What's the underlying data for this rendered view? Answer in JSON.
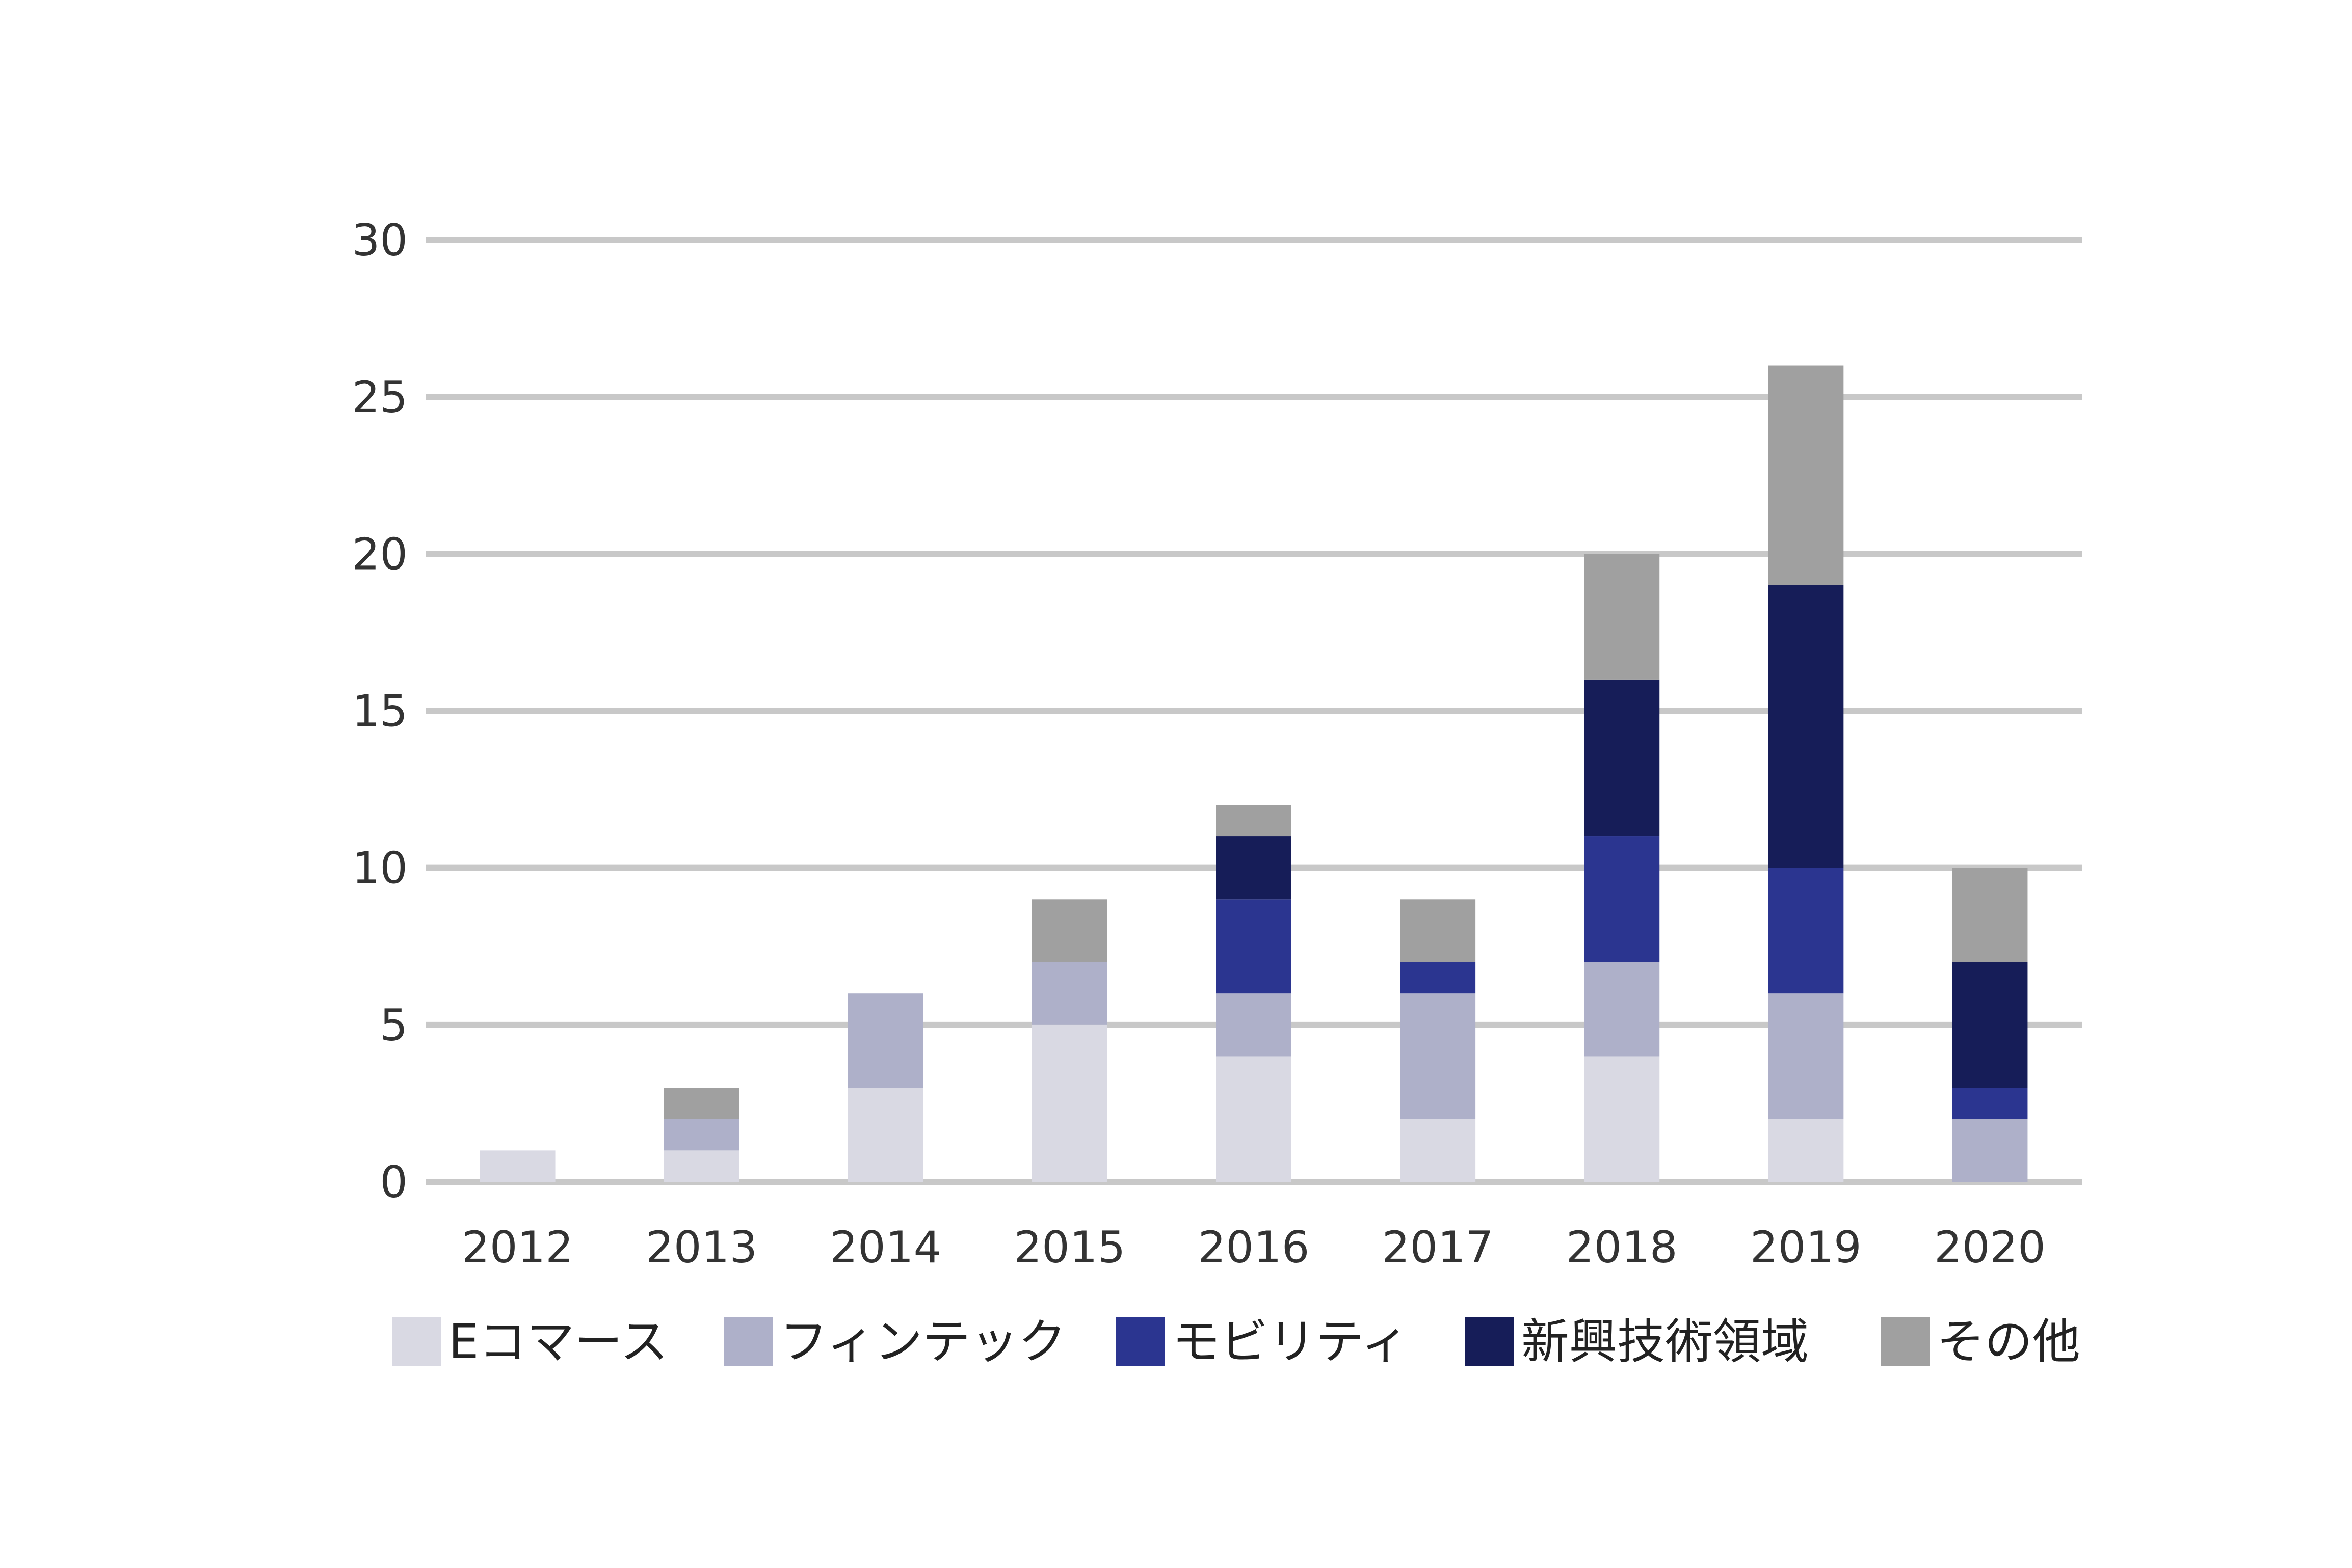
{
  "chart_data": {
    "type": "bar",
    "stacked": true,
    "title": "",
    "xlabel": "",
    "ylabel": "",
    "categories": [
      "2012",
      "2013",
      "2014",
      "2015",
      "2016",
      "2017",
      "2018",
      "2019",
      "2020"
    ],
    "ylim": [
      0,
      30
    ],
    "yticks": [
      "0",
      "5",
      "10",
      "15",
      "20",
      "25",
      "30"
    ],
    "grid": "horizontal",
    "legend_position": "bottom",
    "series": [
      {
        "name": "Eコマース",
        "color": "#d9d9e3",
        "values": [
          1,
          1,
          3,
          5,
          4,
          2,
          4,
          2,
          0
        ]
      },
      {
        "name": "フィンテック",
        "color": "#aeb0c9",
        "values": [
          0,
          1,
          3,
          2,
          2,
          4,
          3,
          4,
          2
        ]
      },
      {
        "name": "モビリティ",
        "color": "#2b3590",
        "values": [
          0,
          0,
          0,
          0,
          3,
          1,
          4,
          4,
          1
        ]
      },
      {
        "name": "新興技術領域",
        "color": "#161d58",
        "values": [
          0,
          0,
          0,
          0,
          2,
          0,
          5,
          9,
          4
        ]
      },
      {
        "name": "その他",
        "color": "#a0a0a0",
        "values": [
          0,
          1,
          0,
          2,
          1,
          2,
          4,
          7,
          3
        ]
      }
    ]
  }
}
